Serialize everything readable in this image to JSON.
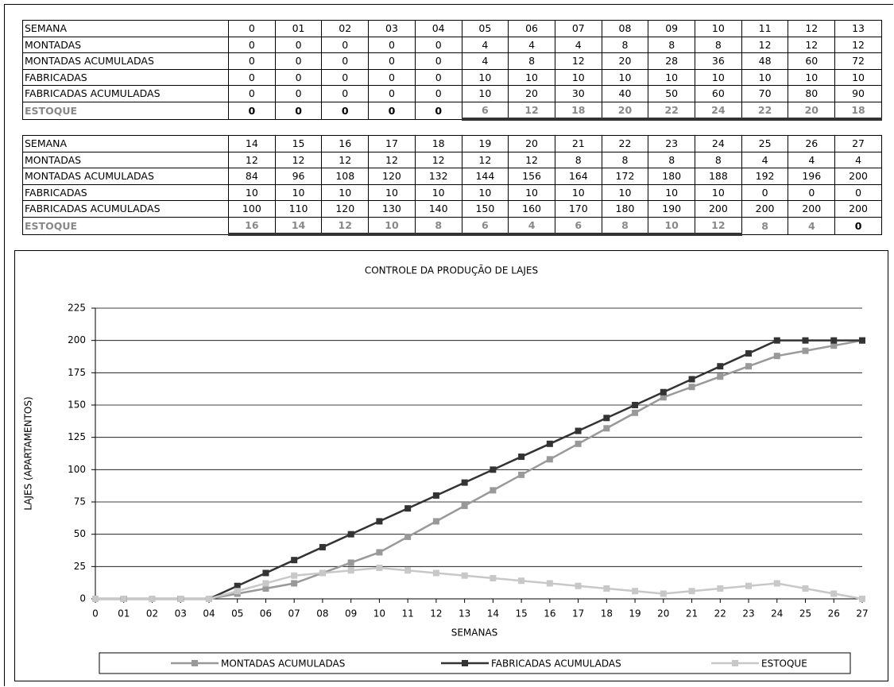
{
  "tables": [
    {
      "rows": [
        [
          "SEMANA",
          "0",
          "01",
          "02",
          "03",
          "04",
          "05",
          "06",
          "07",
          "08",
          "09",
          "10",
          "11",
          "12",
          "13"
        ],
        [
          "MONTADAS",
          "0",
          "0",
          "0",
          "0",
          "0",
          "4",
          "4",
          "4",
          "8",
          "8",
          "8",
          "12",
          "12",
          "12"
        ],
        [
          "MONTADAS ACUMULADAS",
          "0",
          "0",
          "0",
          "0",
          "0",
          "4",
          "8",
          "12",
          "20",
          "28",
          "36",
          "48",
          "60",
          "72"
        ],
        [
          "FABRICADAS",
          "0",
          "0",
          "0",
          "0",
          "0",
          "10",
          "10",
          "10",
          "10",
          "10",
          "10",
          "10",
          "10",
          "10"
        ],
        [
          "FABRICADAS ACUMULADAS",
          "0",
          "0",
          "0",
          "0",
          "0",
          "10",
          "20",
          "30",
          "40",
          "50",
          "60",
          "70",
          "80",
          "90"
        ],
        [
          "ESTOQUE",
          "0",
          "0",
          "0",
          "0",
          "0",
          "6",
          "12",
          "18",
          "20",
          "22",
          "24",
          "22",
          "20",
          "18"
        ]
      ]
    },
    {
      "rows": [
        [
          "SEMANA",
          "14",
          "15",
          "16",
          "17",
          "18",
          "19",
          "20",
          "21",
          "22",
          "23",
          "24",
          "25",
          "26",
          "27"
        ],
        [
          "MONTADAS",
          "12",
          "12",
          "12",
          "12",
          "12",
          "12",
          "12",
          "8",
          "8",
          "8",
          "8",
          "4",
          "4",
          "4"
        ],
        [
          "MONTADAS ACUMULADAS",
          "84",
          "96",
          "108",
          "120",
          "132",
          "144",
          "156",
          "164",
          "172",
          "180",
          "188",
          "192",
          "196",
          "200"
        ],
        [
          "FABRICADAS",
          "10",
          "10",
          "10",
          "10",
          "10",
          "10",
          "10",
          "10",
          "10",
          "10",
          "10",
          "0",
          "0",
          "0"
        ],
        [
          "FABRICADAS ACUMULADAS",
          "100",
          "110",
          "120",
          "130",
          "140",
          "150",
          "160",
          "170",
          "180",
          "190",
          "200",
          "200",
          "200",
          "200"
        ],
        [
          "ESTOQUE",
          "16",
          "14",
          "12",
          "10",
          "8",
          "6",
          "4",
          "6",
          "8",
          "10",
          "12",
          "8",
          "4",
          "0"
        ]
      ]
    }
  ],
  "chart_data": {
    "type": "line",
    "title": "CONTROLE DA PRODUÇÃO DE LAJES",
    "x_label": "SEMANAS",
    "y_label": "LAJES (APARTAMENTOS)",
    "categories": [
      "0",
      "01",
      "02",
      "03",
      "04",
      "05",
      "06",
      "07",
      "08",
      "09",
      "10",
      "11",
      "12",
      "13",
      "14",
      "15",
      "16",
      "17",
      "18",
      "19",
      "20",
      "21",
      "22",
      "23",
      "24",
      "25",
      "26",
      "27"
    ],
    "series": [
      {
        "name": "MONTADAS ACUMULADAS",
        "color": "#999999",
        "values": [
          0,
          0,
          0,
          0,
          0,
          4,
          8,
          12,
          20,
          28,
          36,
          48,
          60,
          72,
          84,
          96,
          108,
          120,
          132,
          144,
          156,
          164,
          172,
          180,
          188,
          192,
          196,
          200
        ]
      },
      {
        "name": "FABRICADAS ACUMULADAS",
        "color": "#333333",
        "values": [
          0,
          0,
          0,
          0,
          0,
          10,
          20,
          30,
          40,
          50,
          60,
          70,
          80,
          90,
          100,
          110,
          120,
          130,
          140,
          150,
          160,
          170,
          180,
          190,
          200,
          200,
          200,
          200
        ]
      },
      {
        "name": "ESTOQUE",
        "color": "#c8c8c8",
        "values": [
          0,
          0,
          0,
          0,
          0,
          6,
          12,
          18,
          20,
          22,
          24,
          22,
          20,
          18,
          16,
          14,
          12,
          10,
          8,
          6,
          4,
          6,
          8,
          10,
          12,
          8,
          4,
          0
        ]
      }
    ],
    "ylim": [
      0,
      225
    ],
    "yticks": [
      0,
      25,
      50,
      75,
      100,
      125,
      150,
      175,
      200,
      225
    ],
    "grid": true,
    "legend": "bottom"
  }
}
